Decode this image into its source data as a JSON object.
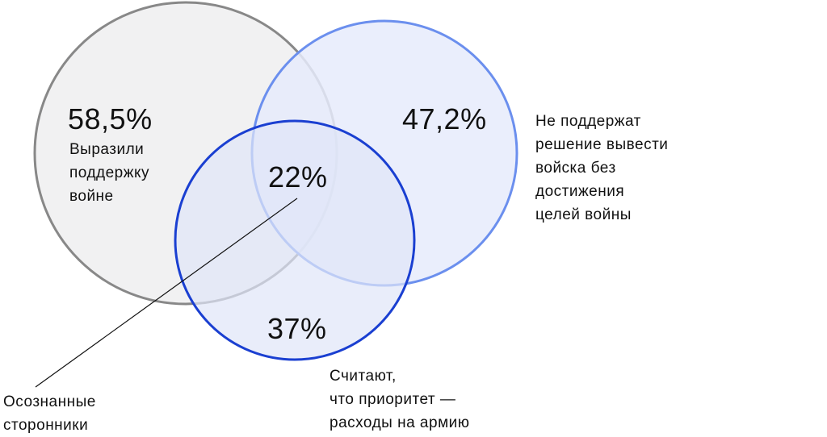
{
  "colors": {
    "gray_stroke": "#888888",
    "gray_fill": "#f1f1f2",
    "light_blue_stroke": "#6b8fee",
    "light_blue_fill": "#e6ebfb",
    "dark_blue_stroke": "#1a3fd1",
    "dark_blue_fill": "#dfe5f8",
    "leader_line": "#111111"
  },
  "circles": [
    {
      "id": "support",
      "value": "58,5%",
      "label": "Выразили\nподдержку\nвойне"
    },
    {
      "id": "no_withdrawal",
      "value": "47,2%",
      "label": "Не поддержат\nрешение вывести\nвойска без\nдостижения\nцелей войны"
    },
    {
      "id": "army_priority",
      "value": "37%",
      "label": "Считают,\nчто приоритет —\nрасходы на армию"
    }
  ],
  "intersection": {
    "value": "22%",
    "label": "Осознанные\nсторонники"
  }
}
